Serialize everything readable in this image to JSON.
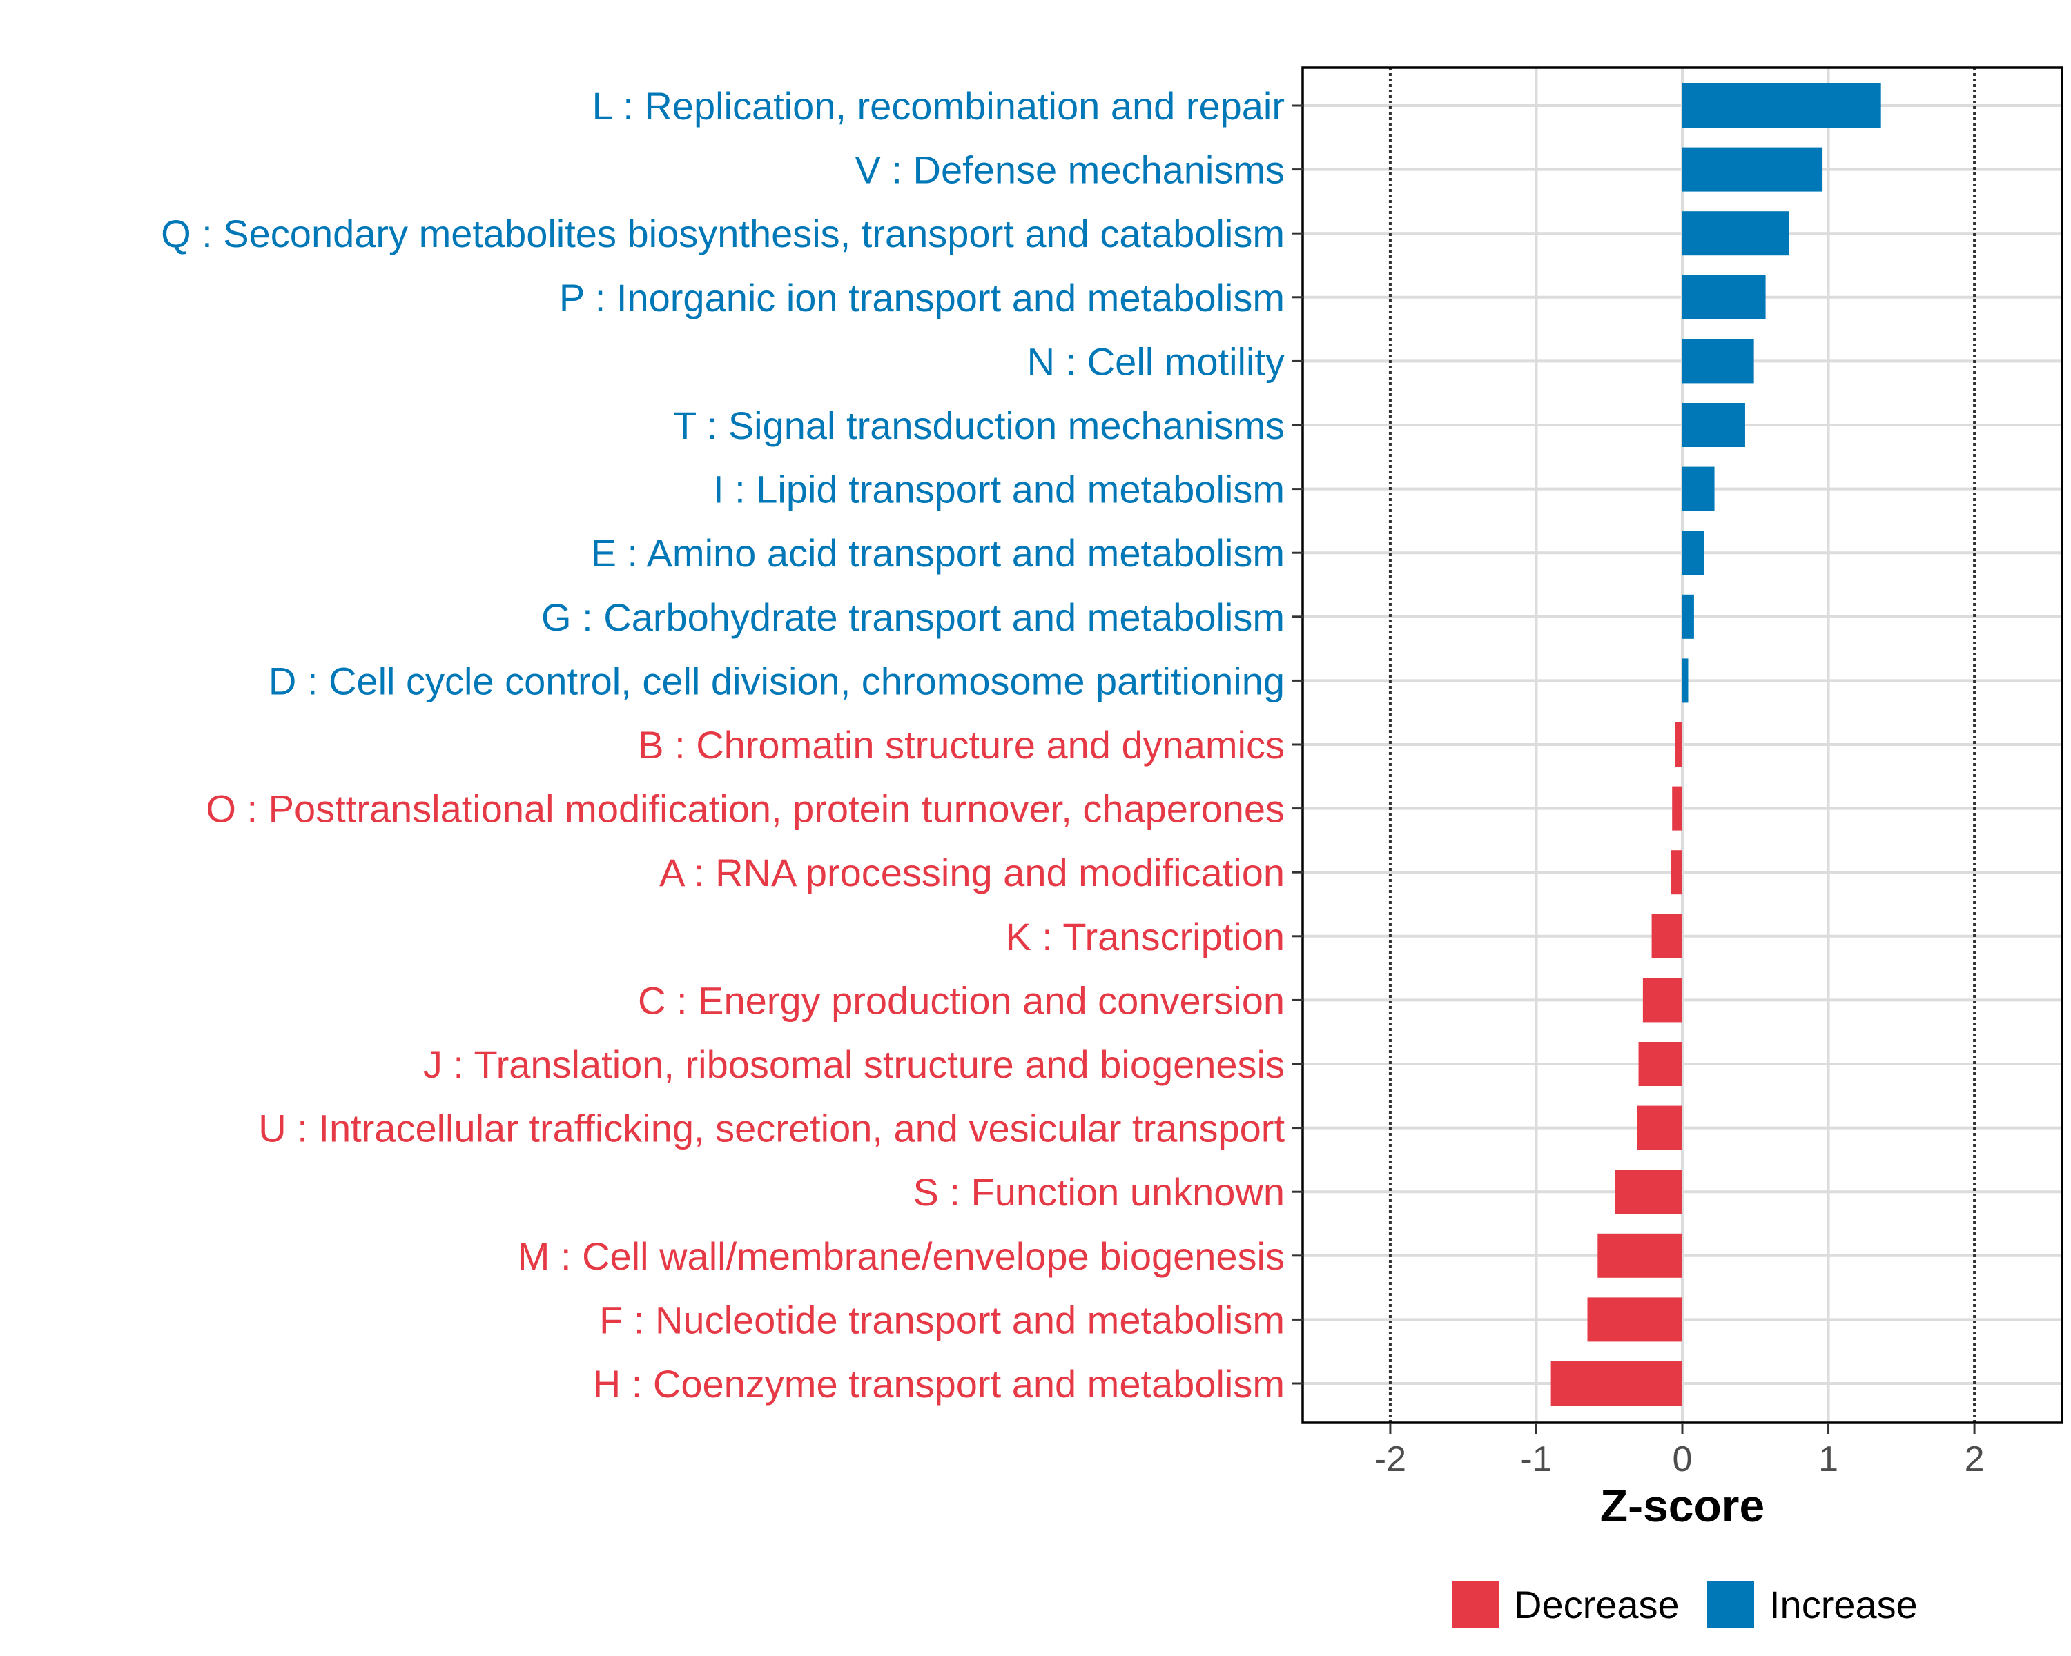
{
  "chart_data": {
    "type": "bar",
    "orientation": "horizontal",
    "xlabel": "Z-score",
    "xlim": [
      -2.6,
      2.6
    ],
    "xticks": [
      -2,
      -1,
      0,
      1,
      2
    ],
    "reference_lines": [
      -2,
      2
    ],
    "colors": {
      "Decrease": "#e63946",
      "Increase": "#0077b6"
    },
    "categories": [
      "L : Replication, recombination and repair",
      "V : Defense mechanisms",
      "Q : Secondary metabolites biosynthesis, transport and catabolism",
      "P : Inorganic ion transport and metabolism",
      "N : Cell motility",
      "T : Signal transduction mechanisms",
      "I : Lipid transport and metabolism",
      "E : Amino acid transport and metabolism",
      "G : Carbohydrate transport and metabolism",
      "D : Cell cycle control, cell division, chromosome partitioning",
      "B : Chromatin structure and dynamics",
      "O : Posttranslational modification, protein turnover, chaperones",
      "A : RNA processing and modification",
      "K : Transcription",
      "C : Energy production and conversion",
      "J : Translation, ribosomal structure and biogenesis",
      "U : Intracellular trafficking, secretion, and vesicular transport",
      "S : Function unknown",
      "M : Cell wall/membrane/envelope biogenesis",
      "F : Nucleotide transport and metabolism",
      "H : Coenzyme transport and metabolism"
    ],
    "values": [
      1.36,
      0.96,
      0.73,
      0.57,
      0.49,
      0.43,
      0.22,
      0.15,
      0.08,
      0.04,
      -0.05,
      -0.07,
      -0.08,
      -0.21,
      -0.27,
      -0.3,
      -0.31,
      -0.46,
      -0.58,
      -0.65,
      -0.9
    ],
    "groups": [
      "Increase",
      "Increase",
      "Increase",
      "Increase",
      "Increase",
      "Increase",
      "Increase",
      "Increase",
      "Increase",
      "Increase",
      "Decrease",
      "Decrease",
      "Decrease",
      "Decrease",
      "Decrease",
      "Decrease",
      "Decrease",
      "Decrease",
      "Decrease",
      "Decrease",
      "Decrease"
    ],
    "legend": [
      "Decrease",
      "Increase"
    ],
    "legend_position": "bottom-right",
    "grid": true
  }
}
